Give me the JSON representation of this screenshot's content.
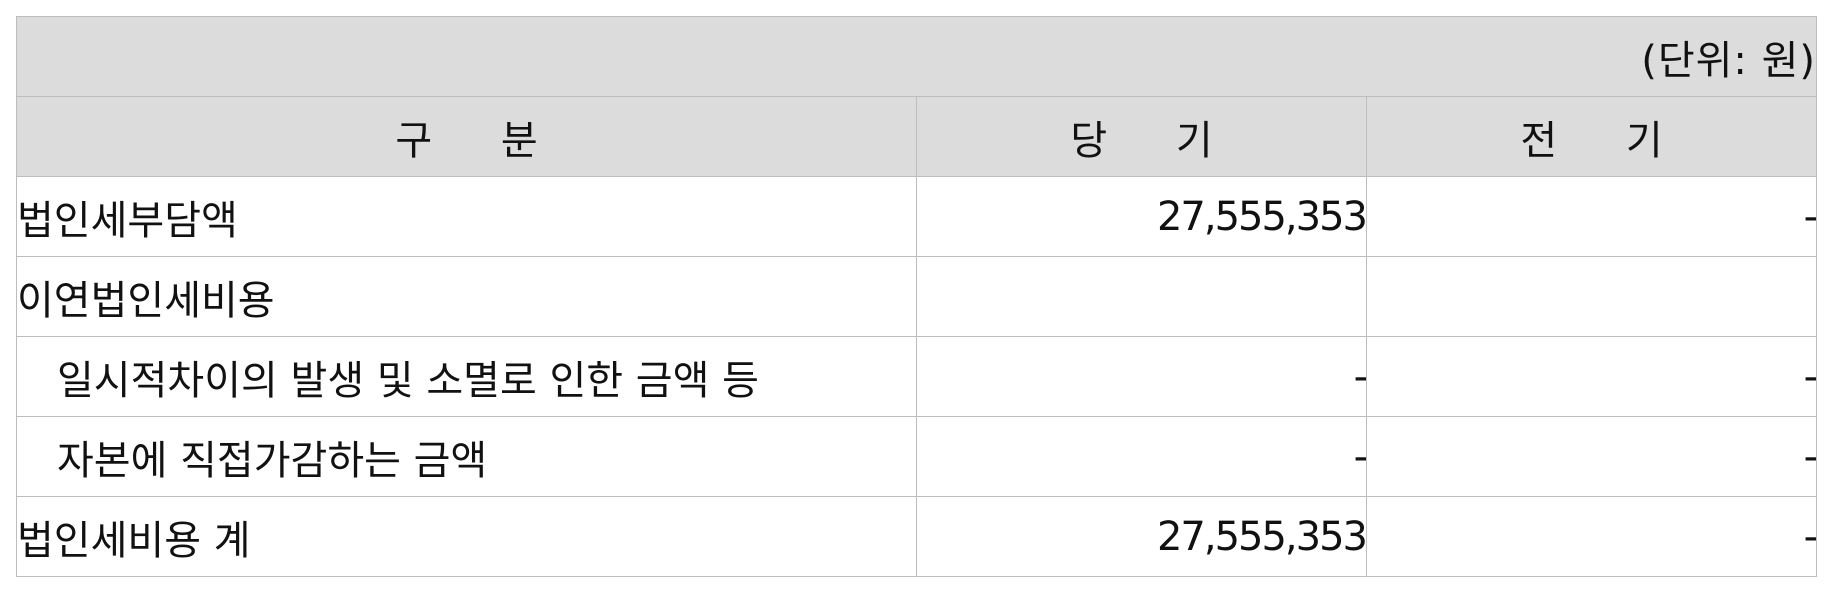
{
  "table": {
    "unit_note": "(단위: 원)",
    "headers": {
      "category": "구  분",
      "current": "당 기",
      "previous": "전 기"
    },
    "rows": [
      {
        "label": "법인세부담액",
        "current": "27,555,353",
        "previous": "-",
        "indent": false
      },
      {
        "label": "이연법인세비용",
        "current": "",
        "previous": "",
        "indent": false
      },
      {
        "label": "일시적차이의 발생 및 소멸로 인한 금액 등",
        "current": "-",
        "previous": "-",
        "indent": true
      },
      {
        "label": "자본에 직접가감하는 금액",
        "current": "-",
        "previous": "-",
        "indent": true
      },
      {
        "label": "법인세비용 계",
        "current": "27,555,353",
        "previous": "-",
        "indent": false
      }
    ]
  }
}
